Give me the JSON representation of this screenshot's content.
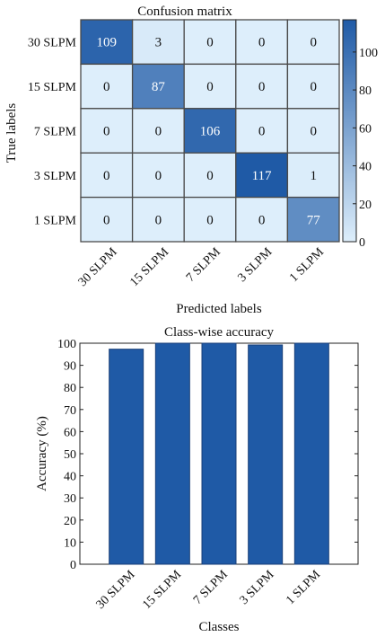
{
  "chart_data": [
    {
      "type": "heatmap",
      "title": "Confusion matrix",
      "xlabel": "Predicted labels",
      "ylabel": "True labels",
      "x_categories": [
        "30 SLPM",
        "15 SLPM",
        "7 SLPM",
        "3 SLPM",
        "1 SLPM"
      ],
      "y_categories": [
        "30 SLPM",
        "15 SLPM",
        "7 SLPM",
        "3 SLPM",
        "1 SLPM"
      ],
      "values": [
        [
          109,
          3,
          0,
          0,
          0
        ],
        [
          0,
          87,
          0,
          0,
          0
        ],
        [
          0,
          0,
          106,
          0,
          0
        ],
        [
          0,
          0,
          0,
          117,
          1
        ],
        [
          0,
          0,
          0,
          0,
          77
        ]
      ],
      "colorbar": {
        "range": [
          0,
          117
        ],
        "ticks": [
          "0",
          "20",
          "40",
          "60",
          "80",
          "100"
        ],
        "low_color": "#ddeefb",
        "high_color": "#1f5aa6"
      },
      "grid": true
    },
    {
      "type": "bar",
      "title": "Class-wise accuracy",
      "xlabel": "Classes",
      "ylabel": "Accuracy (%)",
      "categories": [
        "30 SLPM",
        "15 SLPM",
        "7 SLPM",
        "3 SLPM",
        "1 SLPM"
      ],
      "values": [
        97.3,
        100,
        100,
        99.2,
        100
      ],
      "ylim": [
        0,
        100
      ],
      "yticks": [
        "0",
        "10",
        "20",
        "30",
        "40",
        "50",
        "60",
        "70",
        "80",
        "90",
        "100"
      ],
      "bar_color": "#1f5aa6",
      "grid": false
    }
  ]
}
